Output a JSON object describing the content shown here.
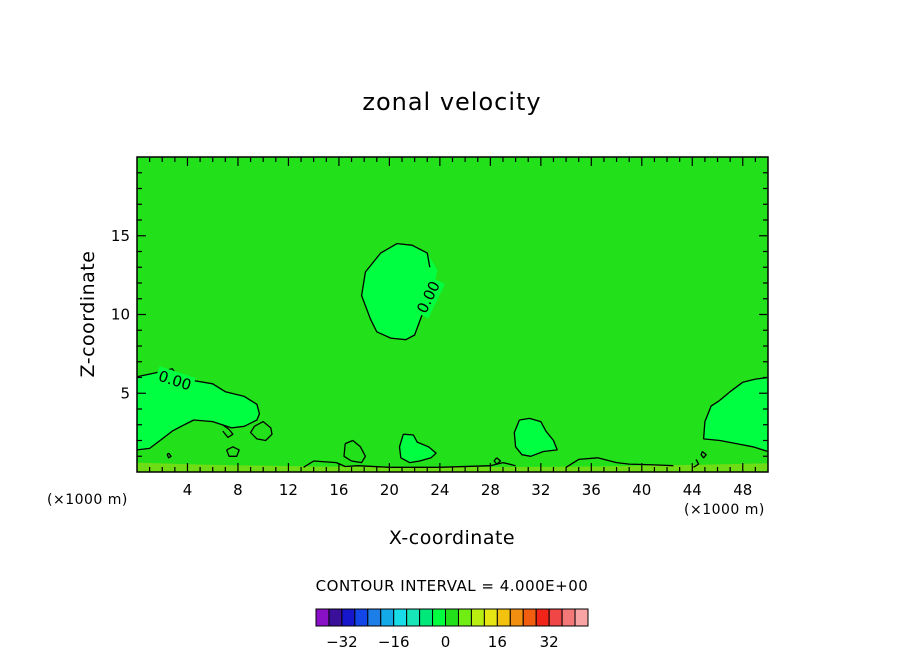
{
  "chart_data": {
    "type": "heatmap",
    "title": "zonal velocity",
    "xlabel": "X-coordinate",
    "ylabel": "Z-coordinate",
    "x_unit": "(×1000 m)",
    "y_unit": "(×1000 m)",
    "xlim": [
      0,
      50
    ],
    "ylim": [
      0,
      20
    ],
    "x_ticks": [
      4,
      8,
      12,
      16,
      20,
      24,
      28,
      32,
      36,
      40,
      44,
      48
    ],
    "y_ticks": [
      5,
      10,
      15
    ],
    "contour_interval_label": "CONTOUR INTERVAL = 4.000E+00",
    "contour_labels": [
      "0.00",
      "0.00"
    ],
    "colorbar": {
      "ticks": [
        -32,
        -16,
        0,
        16,
        32
      ],
      "tick_labels": [
        "−32",
        "−16",
        "0",
        "16",
        "32"
      ],
      "colors": [
        "#8a10c8",
        "#3a0f9a",
        "#1616cc",
        "#1346e8",
        "#1e7ee8",
        "#14aae8",
        "#18dce8",
        "#16e6b8",
        "#00e87a",
        "#00ff40",
        "#22e01a",
        "#70ee14",
        "#b8ef10",
        "#e6e614",
        "#f2c20e",
        "#f28f10",
        "#f25e10",
        "#f02418",
        "#f04646",
        "#f47878",
        "#f8a4a4"
      ]
    },
    "background_level_color": "#22e01a",
    "positive_patch_color": "#00ff40",
    "negative_patch_color": "#6edd16",
    "regions": [
      {
        "kind": "positive",
        "points": [
          [
            0,
            6.05
          ],
          [
            1.5,
            6.3
          ],
          [
            2.8,
            6.55
          ],
          [
            3.3,
            6.0
          ],
          [
            4.5,
            5.8
          ],
          [
            6,
            5.6
          ],
          [
            7,
            5.1
          ],
          [
            8.5,
            4.8
          ],
          [
            9.5,
            4.3
          ],
          [
            9.7,
            3.7
          ],
          [
            9.5,
            3.3
          ],
          [
            8.5,
            2.9
          ],
          [
            7.5,
            2.8
          ],
          [
            6,
            3.2
          ],
          [
            4.5,
            3.3
          ],
          [
            3.5,
            2.9
          ],
          [
            2.8,
            2.6
          ],
          [
            2,
            2.1
          ],
          [
            1,
            1.5
          ],
          [
            0,
            1.4
          ]
        ]
      },
      {
        "kind": "positive",
        "points": [
          [
            20.6,
            14.5
          ],
          [
            21.8,
            14.4
          ],
          [
            23,
            13.9
          ],
          [
            23.8,
            12.8
          ],
          [
            23.4,
            11.3
          ],
          [
            22.6,
            10
          ],
          [
            22,
            8.7
          ],
          [
            21.3,
            8.4
          ],
          [
            20.1,
            8.5
          ],
          [
            19,
            8.9
          ],
          [
            18.5,
            9.7
          ],
          [
            17.8,
            11.2
          ],
          [
            18.1,
            12.7
          ],
          [
            19.3,
            13.9
          ]
        ]
      },
      {
        "kind": "positive",
        "points": [
          [
            30.3,
            3.3
          ],
          [
            31.1,
            3.4
          ],
          [
            32,
            3.2
          ],
          [
            32.4,
            2.6
          ],
          [
            33,
            2.0
          ],
          [
            33.3,
            1.4
          ],
          [
            32.2,
            1.3
          ],
          [
            31.2,
            1.0
          ],
          [
            30.5,
            1.1
          ],
          [
            30.0,
            1.6
          ],
          [
            29.9,
            2.5
          ]
        ]
      },
      {
        "kind": "positive",
        "points": [
          [
            50,
            6.0
          ],
          [
            49,
            5.9
          ],
          [
            48,
            5.7
          ],
          [
            47,
            5.1
          ],
          [
            46.1,
            4.5
          ],
          [
            45.5,
            4.2
          ],
          [
            45,
            3.2
          ],
          [
            44.9,
            2.1
          ],
          [
            46.2,
            2.0
          ],
          [
            47.5,
            1.8
          ],
          [
            48.8,
            1.6
          ],
          [
            50,
            1.3
          ]
        ]
      },
      {
        "kind": "positive",
        "points": [
          [
            21.1,
            2.4
          ],
          [
            21.9,
            2.35
          ],
          [
            22.2,
            1.9
          ],
          [
            23.1,
            1.6
          ],
          [
            23.7,
            1.2
          ],
          [
            23.3,
            0.9
          ],
          [
            22.4,
            0.7
          ],
          [
            21.6,
            0.6
          ],
          [
            20.9,
            0.9
          ],
          [
            20.8,
            1.6
          ]
        ]
      },
      {
        "kind": "negative",
        "points": [
          [
            0,
            0.6
          ],
          [
            6,
            0.45
          ],
          [
            14,
            0.35
          ],
          [
            24,
            0.3
          ],
          [
            36,
            0.35
          ],
          [
            44,
            0.45
          ],
          [
            50,
            0.55
          ],
          [
            50,
            0
          ],
          [
            0,
            0
          ]
        ]
      }
    ],
    "contour_lines": [
      [
        [
          0,
          6.05
        ],
        [
          1.5,
          6.3
        ],
        [
          2.8,
          6.55
        ],
        [
          3.3,
          6.0
        ],
        [
          4.5,
          5.8
        ],
        [
          6,
          5.6
        ],
        [
          7,
          5.1
        ],
        [
          8.5,
          4.8
        ],
        [
          9.5,
          4.3
        ],
        [
          9.7,
          3.7
        ],
        [
          9.5,
          3.3
        ],
        [
          8.5,
          2.9
        ],
        [
          7.5,
          2.8
        ],
        [
          6,
          3.2
        ],
        [
          4.5,
          3.3
        ],
        [
          3.5,
          2.9
        ],
        [
          2.8,
          2.6
        ],
        [
          2,
          2.1
        ],
        [
          1,
          1.5
        ],
        [
          0,
          1.4
        ]
      ],
      [
        [
          23.2,
          13.0
        ],
        [
          23,
          13.9
        ],
        [
          21.8,
          14.4
        ],
        [
          20.6,
          14.5
        ],
        [
          19.3,
          13.9
        ],
        [
          18.1,
          12.7
        ],
        [
          17.8,
          11.2
        ],
        [
          18.5,
          9.7
        ],
        [
          19,
          8.9
        ],
        [
          20.1,
          8.5
        ],
        [
          21.3,
          8.4
        ],
        [
          22,
          8.7
        ],
        [
          22.6,
          10
        ]
      ],
      [
        [
          30.3,
          3.3
        ],
        [
          31.1,
          3.4
        ],
        [
          32,
          3.2
        ],
        [
          32.4,
          2.6
        ],
        [
          33,
          2.0
        ],
        [
          33.3,
          1.4
        ],
        [
          32.2,
          1.3
        ],
        [
          31.2,
          1.0
        ],
        [
          30.5,
          1.1
        ],
        [
          30.0,
          1.6
        ],
        [
          29.9,
          2.5
        ],
        [
          30.3,
          3.3
        ]
      ],
      [
        [
          50,
          6.0
        ],
        [
          49,
          5.9
        ],
        [
          48,
          5.7
        ],
        [
          47,
          5.1
        ],
        [
          46.1,
          4.5
        ],
        [
          45.5,
          4.2
        ],
        [
          45,
          3.2
        ],
        [
          44.9,
          2.1
        ],
        [
          46.2,
          2.0
        ],
        [
          47.5,
          1.8
        ],
        [
          48.8,
          1.6
        ],
        [
          50,
          1.3
        ]
      ],
      [
        [
          21.1,
          2.4
        ],
        [
          21.9,
          2.35
        ],
        [
          22.2,
          1.9
        ],
        [
          23.1,
          1.6
        ],
        [
          23.7,
          1.2
        ],
        [
          23.3,
          0.9
        ],
        [
          22.4,
          0.7
        ],
        [
          21.6,
          0.6
        ],
        [
          20.9,
          0.9
        ],
        [
          20.8,
          1.6
        ],
        [
          21.1,
          2.4
        ]
      ],
      [
        [
          6.8,
          3.0
        ],
        [
          7.3,
          2.7
        ],
        [
          7.6,
          2.4
        ],
        [
          7.2,
          2.2
        ],
        [
          6.8,
          2.6
        ]
      ],
      [
        [
          9.3,
          2.9
        ],
        [
          10,
          3.2
        ],
        [
          10.6,
          2.8
        ],
        [
          10.7,
          2.4
        ],
        [
          10.2,
          2.0
        ],
        [
          9.5,
          2.1
        ],
        [
          9.0,
          2.5
        ],
        [
          9.3,
          2.9
        ]
      ],
      [
        [
          7.1,
          1.4
        ],
        [
          7.6,
          1.6
        ],
        [
          8.1,
          1.4
        ],
        [
          7.9,
          1.0
        ],
        [
          7.3,
          1.0
        ],
        [
          7.1,
          1.4
        ]
      ],
      [
        [
          16.5,
          1.8
        ],
        [
          17.1,
          2.0
        ],
        [
          17.7,
          1.6
        ],
        [
          18.1,
          1.0
        ],
        [
          17.8,
          0.6
        ],
        [
          17.0,
          0.7
        ],
        [
          16.4,
          1.0
        ],
        [
          16.5,
          1.8
        ]
      ],
      [
        [
          13.2,
          0.3
        ],
        [
          14,
          0.7
        ],
        [
          15.8,
          0.6
        ],
        [
          16.5,
          0.35
        ],
        [
          17.5,
          0.4
        ],
        [
          20,
          0.3
        ],
        [
          24,
          0.3
        ],
        [
          28,
          0.4
        ],
        [
          29,
          0.6
        ],
        [
          30,
          0.4
        ]
      ],
      [
        [
          34,
          0.3
        ],
        [
          35,
          0.8
        ],
        [
          36.5,
          0.9
        ],
        [
          38,
          0.6
        ],
        [
          39,
          0.5
        ],
        [
          41,
          0.45
        ],
        [
          42.5,
          0.4
        ]
      ],
      [
        [
          44.3,
          0.8
        ],
        [
          44.5,
          0.5
        ],
        [
          44.1,
          0.3
        ]
      ],
      [
        [
          28.5,
          0.9
        ],
        [
          28.8,
          0.7
        ],
        [
          28.5,
          0.5
        ],
        [
          28.3,
          0.7
        ],
        [
          28.5,
          0.9
        ]
      ],
      [
        [
          2.5,
          1.2
        ],
        [
          2.7,
          1.0
        ],
        [
          2.5,
          0.9
        ],
        [
          2.4,
          1.1
        ],
        [
          2.5,
          1.2
        ]
      ],
      [
        [
          44.8,
          1.3
        ],
        [
          45.1,
          1.1
        ],
        [
          44.9,
          0.9
        ],
        [
          44.7,
          1.1
        ],
        [
          44.8,
          1.3
        ]
      ]
    ],
    "contour_label_positions": [
      [
        3.0,
        5.8,
        18
      ],
      [
        23.1,
        11.1,
        -64
      ]
    ]
  }
}
